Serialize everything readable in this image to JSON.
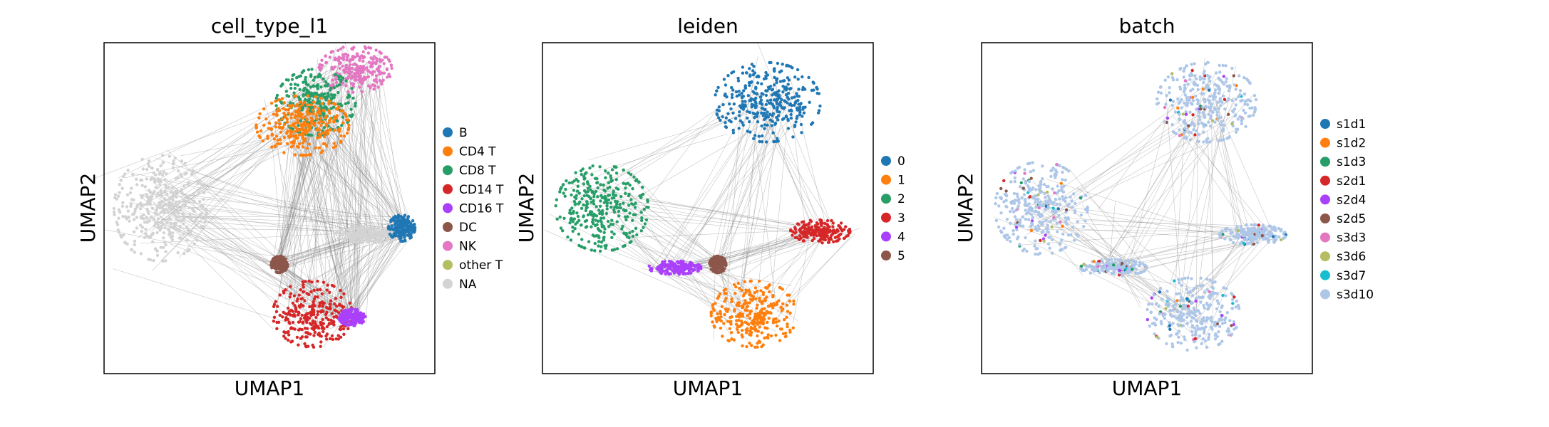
{
  "chart_data": [
    {
      "type": "scatter",
      "title": "cell_type_l1",
      "xlabel": "UMAP1",
      "ylabel": "UMAP2",
      "ticks": false,
      "edges_drawn": true,
      "legend_placement": "right",
      "legend": [
        {
          "label": "B",
          "color": "#1f77b4"
        },
        {
          "label": "CD4 T",
          "color": "#ff7f0e"
        },
        {
          "label": "CD8 T",
          "color": "#279e68"
        },
        {
          "label": "CD14 T",
          "color": "#d62728"
        },
        {
          "label": "CD16 T",
          "color": "#aa40fc"
        },
        {
          "label": "DC",
          "color": "#8c564b"
        },
        {
          "label": "NK",
          "color": "#e377c2"
        },
        {
          "label": "other T",
          "color": "#b5bd61"
        },
        {
          "label": "NA",
          "color": "#d3d3d3"
        }
      ],
      "clusters": [
        {
          "label": "NK",
          "center": [
            0.76,
            0.92
          ],
          "size": [
            0.11,
            0.07
          ],
          "color": "#e377c2"
        },
        {
          "label": "CD8 T",
          "center": [
            0.64,
            0.82
          ],
          "size": [
            0.12,
            0.1
          ],
          "color": "#279e68"
        },
        {
          "label": "CD4 T",
          "center": [
            0.6,
            0.75
          ],
          "size": [
            0.14,
            0.09
          ],
          "color": "#ff7f0e"
        },
        {
          "label": "NA",
          "center": [
            0.17,
            0.5
          ],
          "size": [
            0.14,
            0.16
          ],
          "color": "#d3d3d3"
        },
        {
          "label": "NA",
          "center": [
            0.8,
            0.42
          ],
          "size": [
            0.1,
            0.025
          ],
          "color": "#d3d3d3"
        },
        {
          "label": "B",
          "center": [
            0.9,
            0.44
          ],
          "size": [
            0.04,
            0.04
          ],
          "color": "#1f77b4"
        },
        {
          "label": "DC",
          "center": [
            0.53,
            0.33
          ],
          "size": [
            0.025,
            0.025
          ],
          "color": "#8c564b"
        },
        {
          "label": "CD14 T",
          "center": [
            0.63,
            0.18
          ],
          "size": [
            0.12,
            0.1
          ],
          "color": "#d62728"
        },
        {
          "label": "CD16 T",
          "center": [
            0.75,
            0.17
          ],
          "size": [
            0.04,
            0.025
          ],
          "color": "#aa40fc"
        }
      ]
    },
    {
      "type": "scatter",
      "title": "leiden",
      "xlabel": "UMAP1",
      "ylabel": "UMAP2",
      "ticks": false,
      "edges_drawn": true,
      "legend_placement": "right",
      "legend": [
        {
          "label": "0",
          "color": "#1f77b4"
        },
        {
          "label": "1",
          "color": "#ff7f0e"
        },
        {
          "label": "2",
          "color": "#279e68"
        },
        {
          "label": "3",
          "color": "#d62728"
        },
        {
          "label": "4",
          "color": "#aa40fc"
        },
        {
          "label": "5",
          "color": "#8c564b"
        }
      ],
      "clusters": [
        {
          "label": "0",
          "center": [
            0.68,
            0.82
          ],
          "size": [
            0.16,
            0.12
          ],
          "color": "#1f77b4"
        },
        {
          "label": "2",
          "center": [
            0.18,
            0.5
          ],
          "size": [
            0.14,
            0.13
          ],
          "color": "#279e68"
        },
        {
          "label": "3",
          "center": [
            0.84,
            0.43
          ],
          "size": [
            0.09,
            0.035
          ],
          "color": "#d62728"
        },
        {
          "label": "4",
          "center": [
            0.4,
            0.32
          ],
          "size": [
            0.08,
            0.02
          ],
          "color": "#aa40fc"
        },
        {
          "label": "5",
          "center": [
            0.53,
            0.33
          ],
          "size": [
            0.025,
            0.025
          ],
          "color": "#8c564b"
        },
        {
          "label": "1",
          "center": [
            0.64,
            0.18
          ],
          "size": [
            0.13,
            0.1
          ],
          "color": "#ff7f0e"
        }
      ]
    },
    {
      "type": "scatter",
      "title": "batch",
      "xlabel": "UMAP1",
      "ylabel": "UMAP2",
      "ticks": false,
      "edges_drawn": true,
      "legend_placement": "right",
      "legend": [
        {
          "label": "s1d1",
          "color": "#1f77b4"
        },
        {
          "label": "s1d2",
          "color": "#ff7f0e"
        },
        {
          "label": "s1d3",
          "color": "#279e68"
        },
        {
          "label": "s2d1",
          "color": "#d62728"
        },
        {
          "label": "s2d4",
          "color": "#aa40fc"
        },
        {
          "label": "s2d5",
          "color": "#8c564b"
        },
        {
          "label": "s3d3",
          "color": "#e377c2"
        },
        {
          "label": "s3d6",
          "color": "#b5bd61"
        },
        {
          "label": "s3d7",
          "color": "#17becf"
        },
        {
          "label": "s3d10",
          "color": "#aec7e8"
        }
      ],
      "clusters": [
        {
          "label": "s3d10",
          "center": [
            0.68,
            0.82
          ],
          "size": [
            0.15,
            0.12
          ],
          "color": "#aec7e8"
        },
        {
          "label": "s3d10",
          "center": [
            0.18,
            0.5
          ],
          "size": [
            0.14,
            0.14
          ],
          "color": "#aec7e8"
        },
        {
          "label": "s3d10",
          "center": [
            0.82,
            0.42
          ],
          "size": [
            0.1,
            0.03
          ],
          "color": "#aec7e8"
        },
        {
          "label": "s3d10",
          "center": [
            0.4,
            0.32
          ],
          "size": [
            0.1,
            0.025
          ],
          "color": "#aec7e8"
        },
        {
          "label": "s3d10",
          "center": [
            0.64,
            0.18
          ],
          "size": [
            0.14,
            0.11
          ],
          "color": "#aec7e8"
        }
      ]
    }
  ]
}
